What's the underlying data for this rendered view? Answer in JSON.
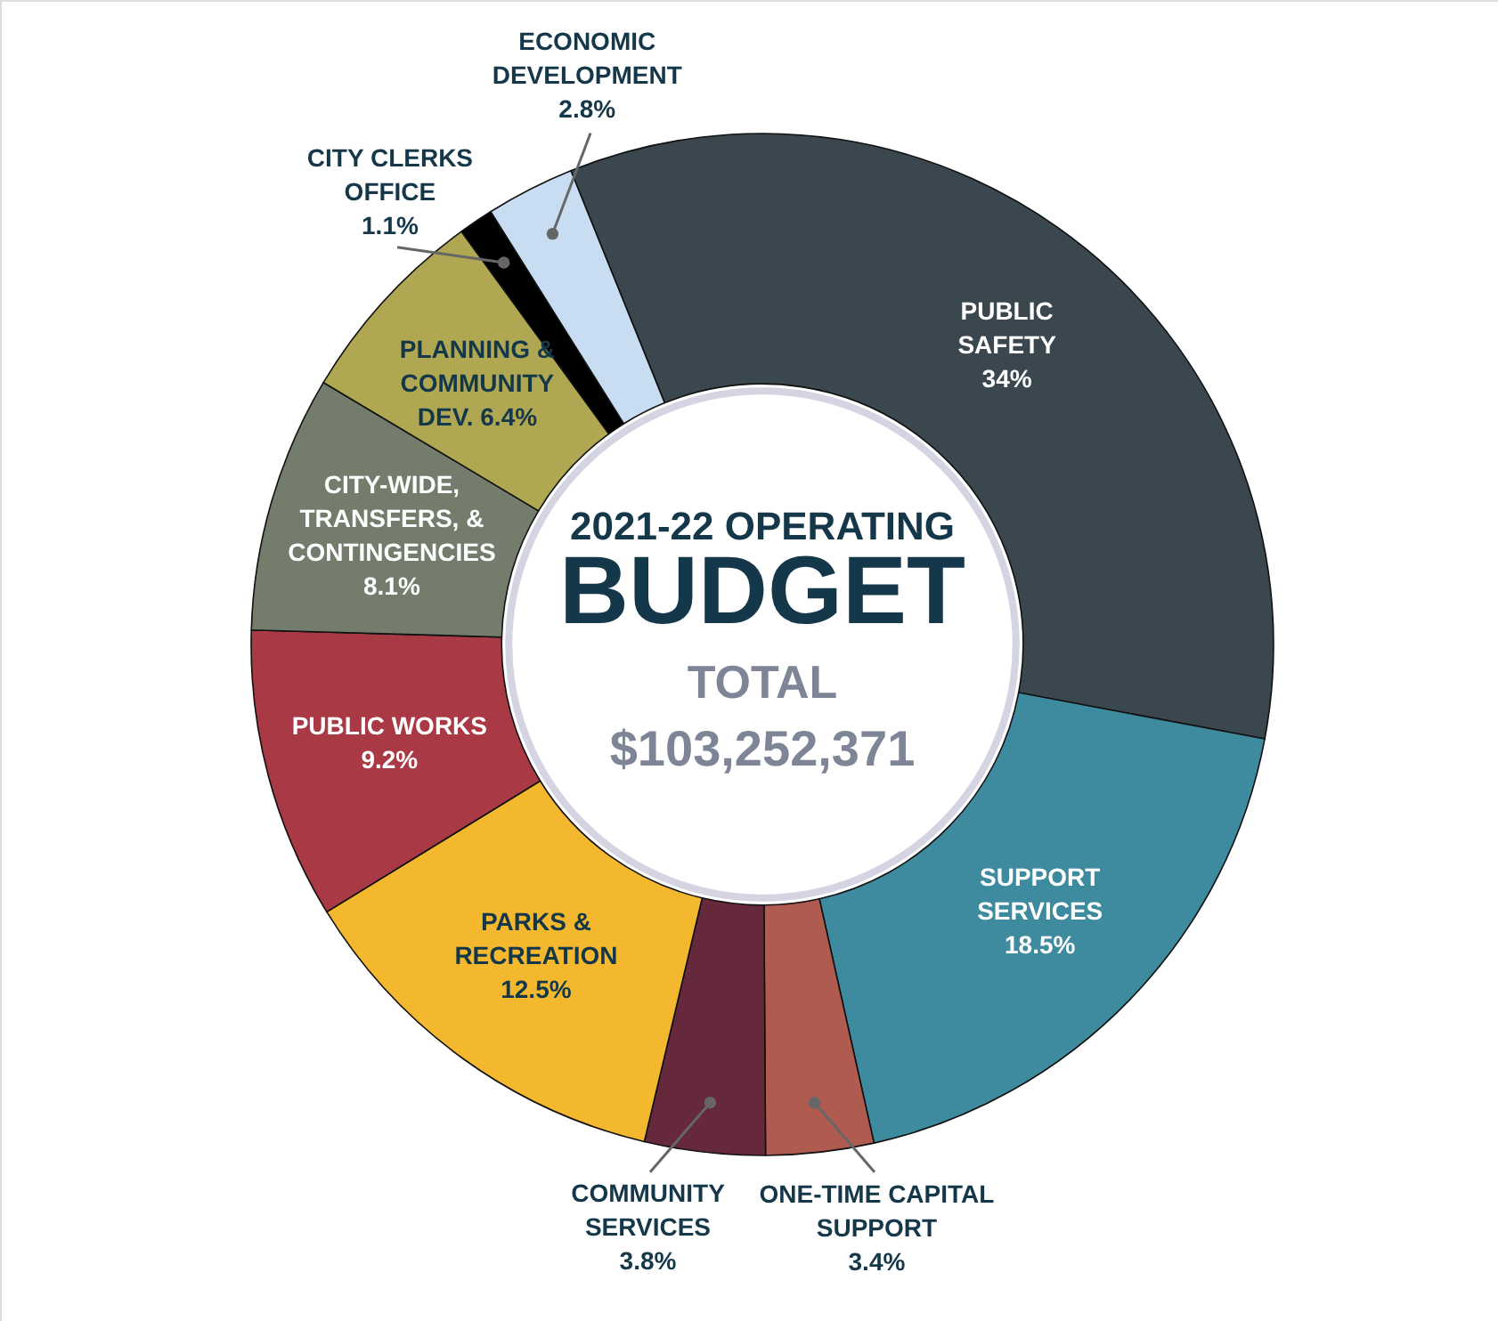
{
  "chart_data": {
    "type": "donut",
    "title": "2021-22 OPERATING",
    "subtitle": "BUDGET",
    "annotations": [
      "TOTAL",
      "$103,252,371"
    ],
    "categories": [
      "PUBLIC SAFETY",
      "SUPPORT SERVICES",
      "ONE-TIME CAPITAL SUPPORT",
      "COMMUNITY SERVICES",
      "PARKS & RECREATION",
      "PUBLIC WORKS",
      "CITY-WIDE, TRANSFERS, & CONTINGENCIES",
      "PLANNING & COMMUNITY DEV.",
      "CITY CLERKS OFFICE",
      "ECONOMIC DEVELOPMENT"
    ],
    "values": [
      34,
      18.5,
      3.4,
      3.8,
      12.5,
      9.2,
      8.1,
      6.4,
      1.1,
      2.8
    ],
    "value_labels": [
      "34%",
      "18.5%",
      "3.4%",
      "3.8%",
      "12.5%",
      "9.2%",
      "8.1%",
      "6.4%",
      "1.1%",
      "2.8%"
    ],
    "colors": [
      "#3a474f",
      "#3e8a9e",
      "#b05b4f",
      "#66283b",
      "#f3b82e",
      "#a93a45",
      "#747d6c",
      "#b0a753",
      "#000000",
      "#c9ddf2"
    ]
  }
}
